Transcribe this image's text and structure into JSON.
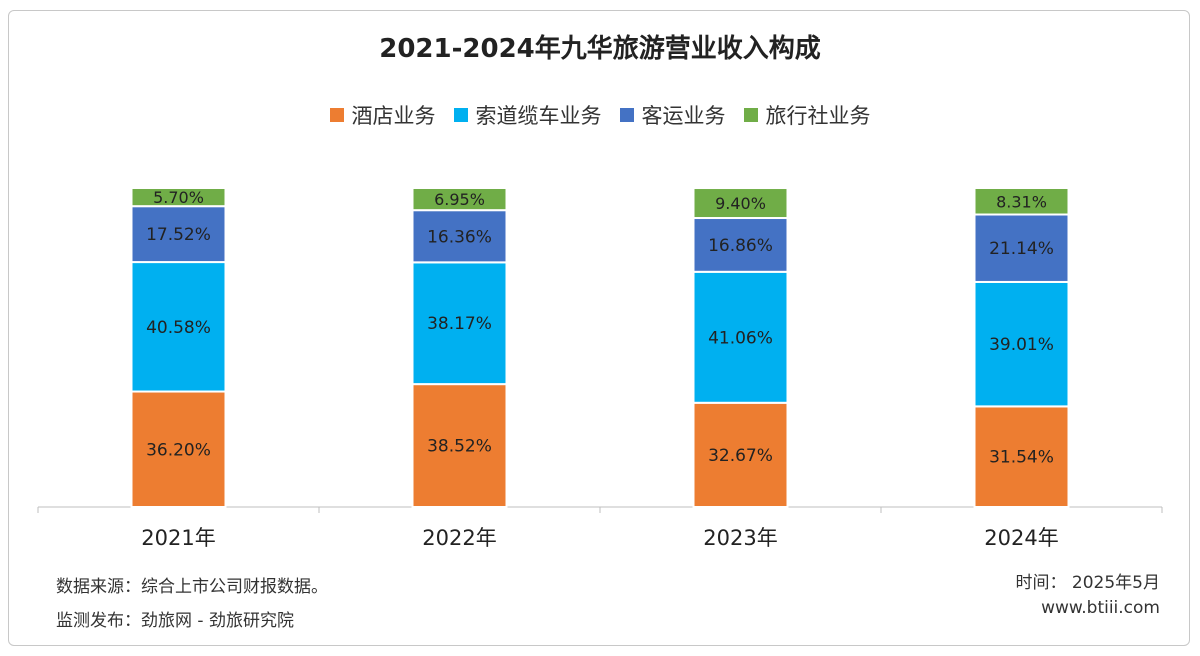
{
  "chart_data": {
    "type": "bar",
    "stacked": true,
    "title": "2021-2024年九华旅游营业收入构成",
    "categories": [
      "2021年",
      "2022年",
      "2023年",
      "2024年"
    ],
    "series": [
      {
        "name": "酒店业务",
        "color": "#ed7d31",
        "values": [
          36.2,
          38.52,
          32.67,
          31.54
        ],
        "labels": [
          "36.20%",
          "38.52%",
          "32.67%",
          "31.54%"
        ]
      },
      {
        "name": "索道缆车业务",
        "color": "#00b0f0",
        "values": [
          40.58,
          38.17,
          41.06,
          39.01
        ],
        "labels": [
          "40.58%",
          "38.17%",
          "41.06%",
          "39.01%"
        ]
      },
      {
        "name": "客运业务",
        "color": "#4472c4",
        "values": [
          17.52,
          16.36,
          16.86,
          21.14
        ],
        "labels": [
          "17.52%",
          "16.36%",
          "16.86%",
          "21.14%"
        ]
      },
      {
        "name": "旅行社业务",
        "color": "#70ad47",
        "values": [
          5.7,
          6.95,
          9.4,
          8.31
        ],
        "labels": [
          "5.70%",
          "6.95%",
          "9.40%",
          "8.31%"
        ]
      }
    ],
    "ylim": [
      0,
      100
    ],
    "grid": false,
    "legend_position": "top"
  },
  "footer": {
    "source": "数据来源：综合上市公司财报数据。",
    "publisher": "监测发布：劲旅网 - 劲旅研究院",
    "time": "时间：  2025年5月",
    "website": "www.btiii.com"
  }
}
